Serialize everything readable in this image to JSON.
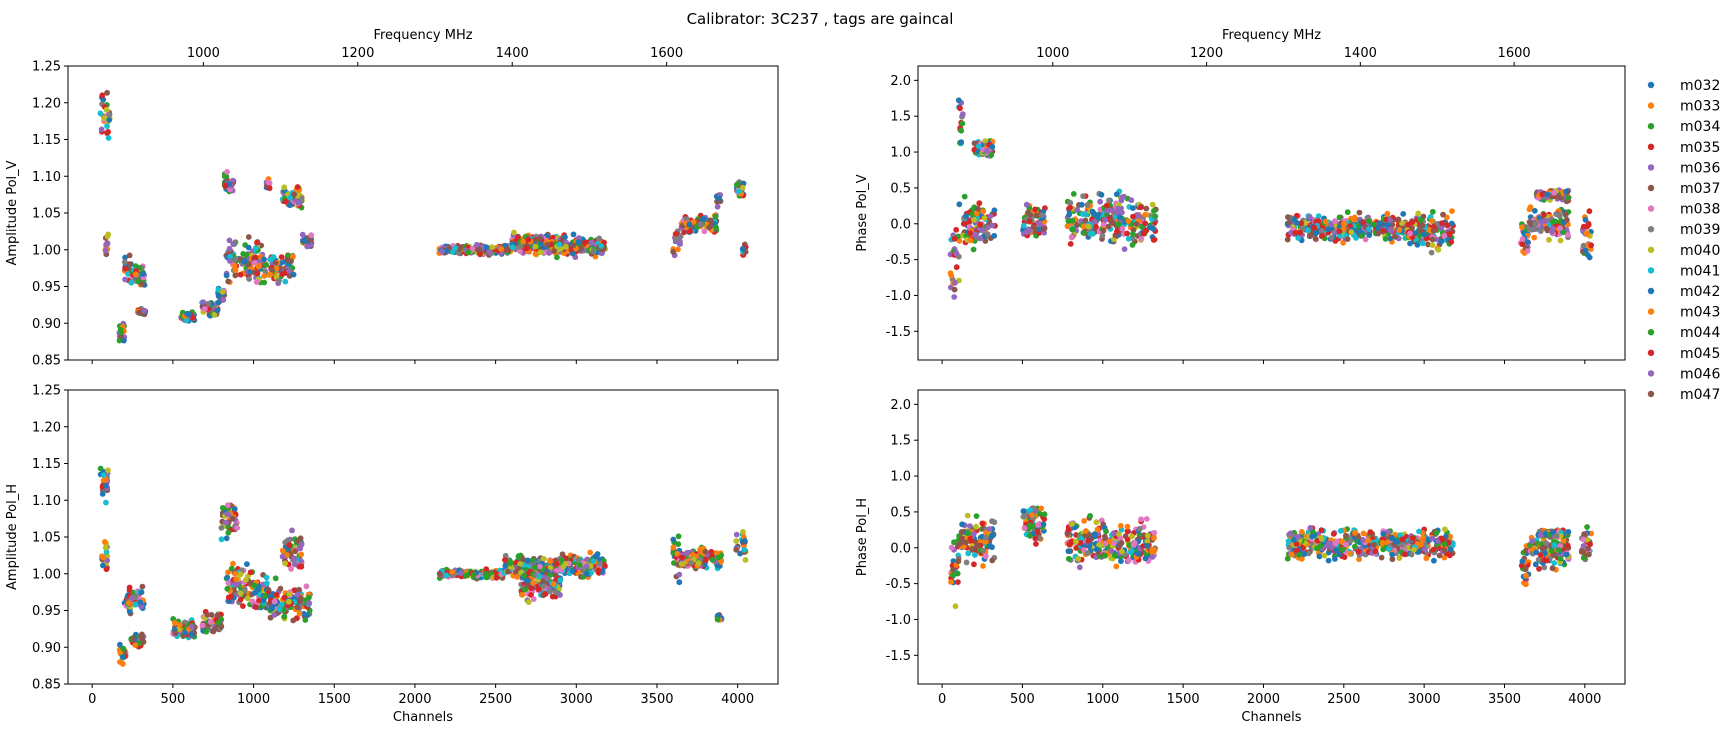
{
  "figure": {
    "title": "Calibrator: 3C237 , tags are gaincal"
  },
  "legend": {
    "placement": "right, outside axes",
    "entries": [
      {
        "name": "m032",
        "color": "#1f77b4"
      },
      {
        "name": "m033",
        "color": "#ff7f0e"
      },
      {
        "name": "m034",
        "color": "#2ca02c"
      },
      {
        "name": "m035",
        "color": "#d62728"
      },
      {
        "name": "m036",
        "color": "#9467bd"
      },
      {
        "name": "m037",
        "color": "#8c564b"
      },
      {
        "name": "m038",
        "color": "#e377c2"
      },
      {
        "name": "m039",
        "color": "#7f7f7f"
      },
      {
        "name": "m040",
        "color": "#bcbd22"
      },
      {
        "name": "m041",
        "color": "#17becf"
      },
      {
        "name": "m042",
        "color": "#1f77b4"
      },
      {
        "name": "m043",
        "color": "#ff7f0e"
      },
      {
        "name": "m044",
        "color": "#2ca02c"
      },
      {
        "name": "m045",
        "color": "#d62728"
      },
      {
        "name": "m046",
        "color": "#9467bd"
      },
      {
        "name": "m047",
        "color": "#8c564b"
      }
    ]
  },
  "chart_data": [
    {
      "id": "amp-v",
      "type": "scatter",
      "ylabel": "Amplitude Pol_V",
      "secondary_xlabel": "Frequency MHz",
      "xlim": [
        -150,
        4250
      ],
      "ylim": [
        0.85,
        1.25
      ],
      "yticks": [
        "0.85",
        "0.90",
        "0.95",
        "1.00",
        "1.05",
        "1.10",
        "1.15",
        "1.20",
        "1.25"
      ],
      "xticks": [
        "0",
        "500",
        "1000",
        "1500",
        "2000",
        "2500",
        "3000",
        "3500",
        "4000"
      ],
      "freq_ticks": [
        "1000",
        "1200",
        "1400",
        "1600"
      ],
      "clusters": [
        {
          "x": [
            50,
            110
          ],
          "y": 1.18,
          "spread": 0.045
        },
        {
          "x": [
            80,
            100
          ],
          "y": 1.01,
          "spread": 0.03
        },
        {
          "x": [
            160,
            200
          ],
          "y": 0.89,
          "spread": 0.02
        },
        {
          "x": [
            200,
            240
          ],
          "y": 0.975,
          "spread": 0.025
        },
        {
          "x": [
            240,
            330
          ],
          "y": 0.965,
          "spread": 0.02
        },
        {
          "x": [
            280,
            330
          ],
          "y": 0.915,
          "spread": 0.005
        },
        {
          "x": [
            550,
            640
          ],
          "y": 0.91,
          "spread": 0.008
        },
        {
          "x": [
            680,
            780
          ],
          "y": 0.92,
          "spread": 0.015
        },
        {
          "x": [
            780,
            820
          ],
          "y": 0.94,
          "spread": 0.02
        },
        {
          "x": [
            820,
            880
          ],
          "y": 1.09,
          "spread": 0.02
        },
        {
          "x": [
            830,
            1000
          ],
          "y": 0.985,
          "spread": 0.04
        },
        {
          "x": [
            1000,
            1080
          ],
          "y": 0.98,
          "spread": 0.04
        },
        {
          "x": [
            1080,
            1100
          ],
          "y": 1.09,
          "spread": 0.01
        },
        {
          "x": [
            1100,
            1250
          ],
          "y": 0.975,
          "spread": 0.03
        },
        {
          "x": [
            1180,
            1300
          ],
          "y": 1.07,
          "spread": 0.02
        },
        {
          "x": [
            1300,
            1360
          ],
          "y": 1.01,
          "spread": 0.015
        },
        {
          "x": [
            2150,
            2600
          ],
          "y": 1.0,
          "spread": 0.008
        },
        {
          "x": [
            2600,
            2900
          ],
          "y": 1.01,
          "spread": 0.015
        },
        {
          "x": [
            2650,
            3180
          ],
          "y": 1.005,
          "spread": 0.02
        },
        {
          "x": [
            3600,
            3650
          ],
          "y": 1.01,
          "spread": 0.03
        },
        {
          "x": [
            3650,
            3870
          ],
          "y": 1.035,
          "spread": 0.015
        },
        {
          "x": [
            3870,
            3900
          ],
          "y": 1.07,
          "spread": 0.015
        },
        {
          "x": [
            3990,
            4040
          ],
          "y": 1.08,
          "spread": 0.02
        },
        {
          "x": [
            4030,
            4050
          ],
          "y": 1.0,
          "spread": 0.015
        }
      ]
    },
    {
      "id": "phase-v",
      "type": "scatter",
      "ylabel": "Phase Pol_V",
      "secondary_xlabel": "Frequency MHz",
      "xlim": [
        -150,
        4250
      ],
      "ylim": [
        -1.9,
        2.2
      ],
      "yticks": [
        "-1.5",
        "-1.0",
        "-0.5",
        "0.0",
        "0.5",
        "1.0",
        "1.5",
        "2.0"
      ],
      "xticks": [
        "0",
        "500",
        "1000",
        "1500",
        "2000",
        "2500",
        "3000",
        "3500",
        "4000"
      ],
      "freq_ticks": [
        "1000",
        "1200",
        "1400",
        "1600"
      ],
      "clusters": [
        {
          "x": [
            50,
            110
          ],
          "y": -0.3,
          "spread": 0.9
        },
        {
          "x": [
            100,
            130
          ],
          "y": 1.4,
          "spread": 0.5
        },
        {
          "x": [
            130,
            330
          ],
          "y": 0.0,
          "spread": 0.45
        },
        {
          "x": [
            200,
            320
          ],
          "y": 1.05,
          "spread": 0.2
        },
        {
          "x": [
            500,
            640
          ],
          "y": 0.0,
          "spread": 0.35
        },
        {
          "x": [
            780,
            1000
          ],
          "y": 0.05,
          "spread": 0.45
        },
        {
          "x": [
            1000,
            1330
          ],
          "y": 0.05,
          "spread": 0.45
        },
        {
          "x": [
            2150,
            2900
          ],
          "y": -0.05,
          "spread": 0.25
        },
        {
          "x": [
            2900,
            3180
          ],
          "y": -0.1,
          "spread": 0.35
        },
        {
          "x": [
            3600,
            3650
          ],
          "y": -0.2,
          "spread": 0.4
        },
        {
          "x": [
            3650,
            3900
          ],
          "y": 0.0,
          "spread": 0.3
        },
        {
          "x": [
            3700,
            3900
          ],
          "y": 0.4,
          "spread": 0.1
        },
        {
          "x": [
            3980,
            4040
          ],
          "y": -0.2,
          "spread": 0.5
        }
      ]
    },
    {
      "id": "amp-h",
      "type": "scatter",
      "ylabel": "Amplitude Pol_H",
      "xlabel": "Channels",
      "xlim": [
        -150,
        4250
      ],
      "ylim": [
        0.85,
        1.25
      ],
      "yticks": [
        "0.85",
        "0.90",
        "0.95",
        "1.00",
        "1.05",
        "1.10",
        "1.15",
        "1.20",
        "1.25"
      ],
      "xticks": [
        "0",
        "500",
        "1000",
        "1500",
        "2000",
        "2500",
        "3000",
        "3500",
        "4000"
      ],
      "clusters": [
        {
          "x": [
            50,
            100
          ],
          "y": 1.125,
          "spread": 0.03
        },
        {
          "x": [
            60,
            100
          ],
          "y": 1.025,
          "spread": 0.03
        },
        {
          "x": [
            170,
            210
          ],
          "y": 0.89,
          "spread": 0.02
        },
        {
          "x": [
            200,
            240
          ],
          "y": 0.96,
          "spread": 0.025
        },
        {
          "x": [
            220,
            320
          ],
          "y": 0.965,
          "spread": 0.02
        },
        {
          "x": [
            240,
            320
          ],
          "y": 0.91,
          "spread": 0.012
        },
        {
          "x": [
            500,
            640
          ],
          "y": 0.925,
          "spread": 0.02
        },
        {
          "x": [
            680,
            800
          ],
          "y": 0.935,
          "spread": 0.02
        },
        {
          "x": [
            800,
            900
          ],
          "y": 1.075,
          "spread": 0.04
        },
        {
          "x": [
            830,
            1000
          ],
          "y": 0.985,
          "spread": 0.04
        },
        {
          "x": [
            1000,
            1100
          ],
          "y": 0.97,
          "spread": 0.04
        },
        {
          "x": [
            1100,
            1350
          ],
          "y": 0.96,
          "spread": 0.035
        },
        {
          "x": [
            1180,
            1300
          ],
          "y": 1.03,
          "spread": 0.03
        },
        {
          "x": [
            2150,
            2550
          ],
          "y": 1.0,
          "spread": 0.008
        },
        {
          "x": [
            2550,
            3180
          ],
          "y": 1.01,
          "spread": 0.02
        },
        {
          "x": [
            2650,
            2900
          ],
          "y": 0.985,
          "spread": 0.03
        },
        {
          "x": [
            3600,
            3650
          ],
          "y": 1.02,
          "spread": 0.04
        },
        {
          "x": [
            3650,
            3900
          ],
          "y": 1.02,
          "spread": 0.02
        },
        {
          "x": [
            3870,
            3900
          ],
          "y": 0.94,
          "spread": 0.01
        },
        {
          "x": [
            3990,
            4050
          ],
          "y": 1.04,
          "spread": 0.03
        }
      ]
    },
    {
      "id": "phase-h",
      "type": "scatter",
      "ylabel": "Phase Pol_H",
      "xlabel": "Channels",
      "xlim": [
        -150,
        4250
      ],
      "ylim": [
        -1.9,
        2.2
      ],
      "yticks": [
        "-1.5",
        "-1.0",
        "-0.5",
        "0.0",
        "0.5",
        "1.0",
        "1.5",
        "2.0"
      ],
      "xticks": [
        "0",
        "500",
        "1000",
        "1500",
        "2000",
        "2500",
        "3000",
        "3500",
        "4000"
      ],
      "clusters": [
        {
          "x": [
            50,
            100
          ],
          "y": -0.3,
          "spread": 0.6
        },
        {
          "x": [
            100,
            330
          ],
          "y": 0.1,
          "spread": 0.45
        },
        {
          "x": [
            500,
            640
          ],
          "y": 0.35,
          "spread": 0.4
        },
        {
          "x": [
            780,
            1000
          ],
          "y": 0.1,
          "spread": 0.45
        },
        {
          "x": [
            1000,
            1330
          ],
          "y": 0.05,
          "spread": 0.4
        },
        {
          "x": [
            2150,
            2900
          ],
          "y": 0.05,
          "spread": 0.3
        },
        {
          "x": [
            2900,
            3180
          ],
          "y": 0.05,
          "spread": 0.25
        },
        {
          "x": [
            3600,
            3650
          ],
          "y": -0.2,
          "spread": 0.5
        },
        {
          "x": [
            3650,
            3900
          ],
          "y": -0.05,
          "spread": 0.3
        },
        {
          "x": [
            3700,
            3900
          ],
          "y": 0.2,
          "spread": 0.08
        },
        {
          "x": [
            3980,
            4040
          ],
          "y": 0.0,
          "spread": 0.35
        }
      ]
    }
  ]
}
